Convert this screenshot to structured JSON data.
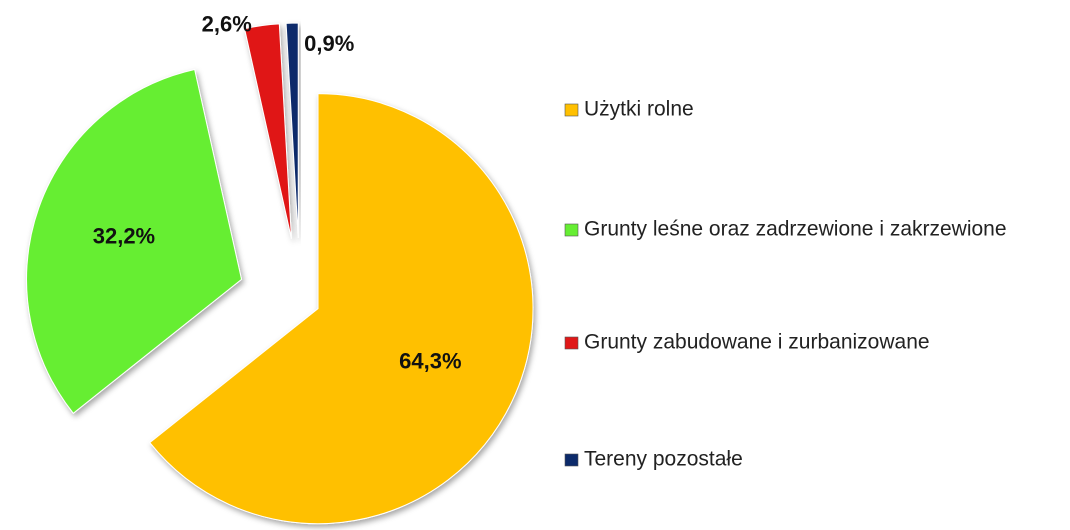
{
  "chart_data": {
    "type": "pie",
    "categories": [
      "Użytki rolne",
      "Grunty leśne oraz zadrzewione i zakrzewione",
      "Grunty zabudowane i zurbanizowane",
      "Tereny pozostałe"
    ],
    "values": [
      64.3,
      32.2,
      2.6,
      0.9
    ],
    "value_labels": [
      "64,3%",
      "32,2%",
      "2,6%",
      "0,9%"
    ],
    "colors": [
      "#ffc000",
      "#66ee33",
      "#e01818",
      "#0c2a6a"
    ],
    "legend": "right"
  }
}
